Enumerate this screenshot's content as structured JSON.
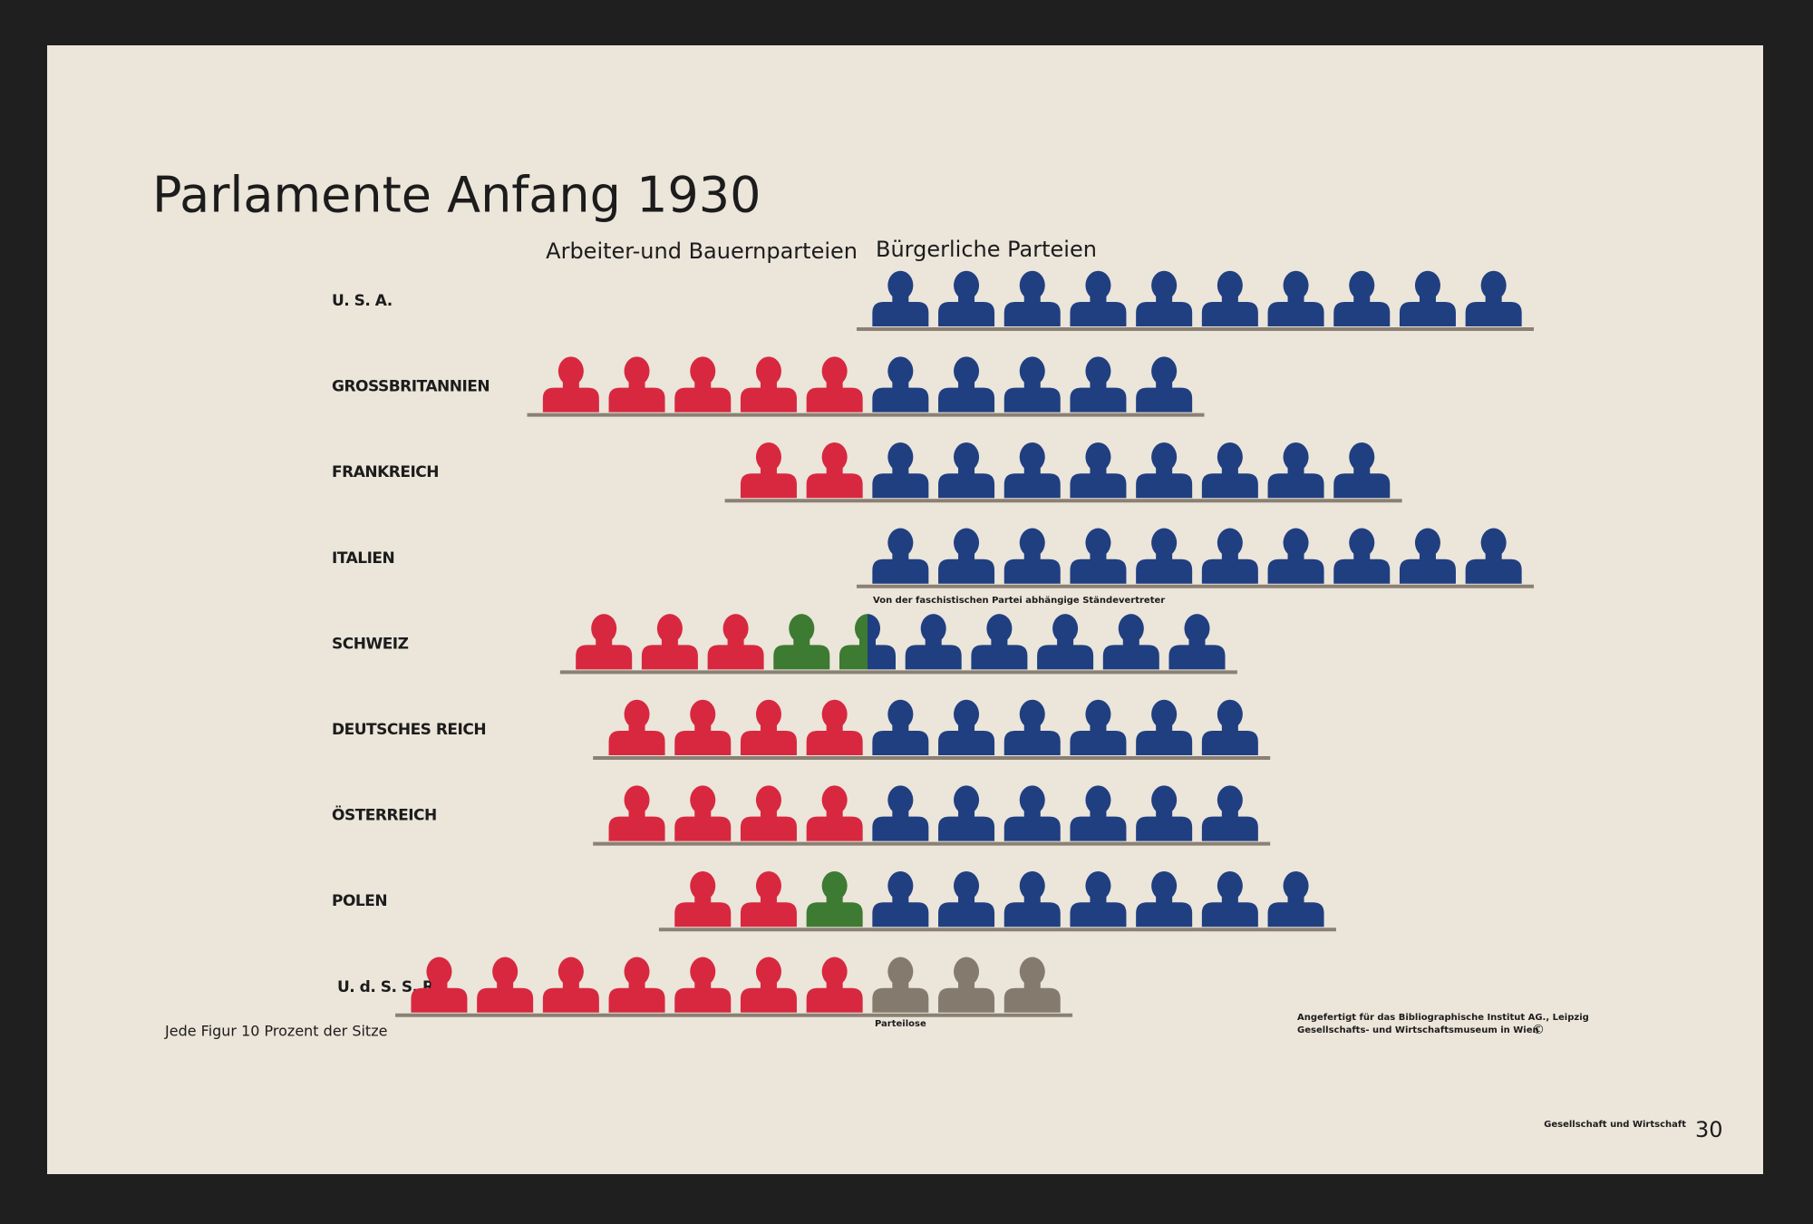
{
  "chart_data": {
    "type": "isotype",
    "title": "Parlamente Anfang 1930",
    "categories": [
      "U. S. A.",
      "GROSSBRITANNIEN",
      "FRANKREICH",
      "ITALIEN",
      "SCHWEIZ",
      "DEUTSCHES REICH",
      "ÖSTERREICH",
      "POLEN",
      "U. d. S. S. R."
    ],
    "series": [
      {
        "name": "Arbeiter-und Bauernparteien",
        "color": "#d8283f",
        "values": [
          0,
          50,
          20,
          0,
          30,
          40,
          40,
          20,
          70
        ]
      },
      {
        "color": "#3d7a32",
        "values": [
          0,
          0,
          0,
          0,
          15,
          0,
          0,
          10,
          0
        ]
      },
      {
        "name": "Bürgerliche Parteien",
        "color": "#203f80",
        "values": [
          100,
          50,
          80,
          100,
          55,
          60,
          60,
          70,
          0
        ]
      },
      {
        "name": "Parteilose",
        "color": "#857a6e",
        "values": [
          0,
          0,
          0,
          0,
          0,
          0,
          0,
          0,
          30
        ]
      }
    ],
    "annotations": [
      "Von der faschistischen Partei abhängige Ständevertreter"
    ],
    "note": "Jede Figur 10 Prozent der Sitze",
    "credits": [
      "Angefertigt für das Bibliographische Institut AG., Leipzig",
      "Gesellschafts- und Wirtschaftsmuseum in Wien",
      "©"
    ],
    "footer": "Gesellschaft und Wirtschaft",
    "page_number": "30"
  }
}
